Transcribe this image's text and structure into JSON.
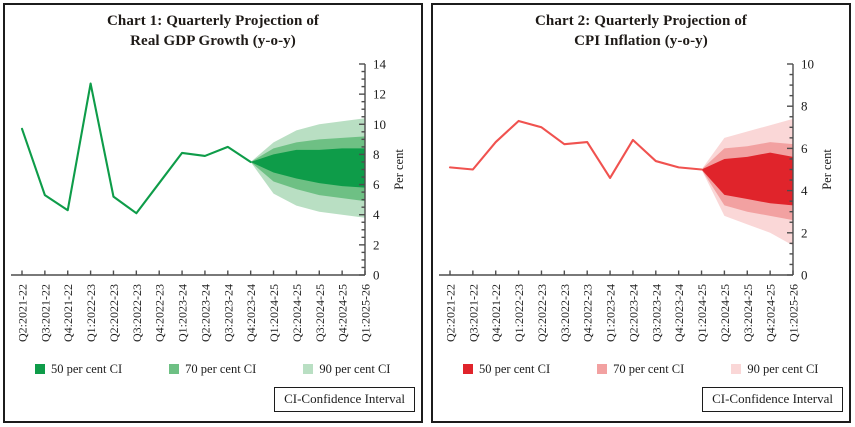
{
  "chart_data": [
    {
      "id": "gdp",
      "type": "line+fan",
      "title_line1": "Chart 1: Quarterly Projection of",
      "title_line2": "Real GDP Growth (y-o-y)",
      "ylabel": "Per cent",
      "ylim": [
        0,
        14
      ],
      "ytick_step": 2,
      "ytick_labels": [
        "0",
        "2",
        "4",
        "6",
        "8",
        "10",
        "12",
        "14"
      ],
      "grid": false,
      "legend_position": "bottom",
      "categories": [
        "Q2:2021-22",
        "Q3:2021-22",
        "Q4:2021-22",
        "Q1:2022-23",
        "Q2:2022-23",
        "Q3:2022-23",
        "Q4:2022-23",
        "Q1:2023-24",
        "Q2:2023-24",
        "Q3:2023-24",
        "Q4:2023-24",
        "Q1:2024-25",
        "Q2:2024-25",
        "Q3:2024-25",
        "Q4:2024-25",
        "Q1:2025-26"
      ],
      "line": {
        "name": "Real GDP growth (actual path)",
        "color": "#0e9c49",
        "values": [
          9.7,
          5.3,
          4.3,
          12.7,
          5.2,
          4.1,
          6.1,
          8.1,
          7.9,
          8.5,
          7.5
        ]
      },
      "fan_start_index": 10,
      "bands": [
        {
          "name": "90 per cent CI",
          "color": "#b9dfc3",
          "upper": [
            7.5,
            8.8,
            9.6,
            10.0,
            10.2,
            10.4
          ],
          "lower": [
            7.5,
            5.4,
            4.6,
            4.2,
            4.0,
            3.8
          ]
        },
        {
          "name": "70 per cent CI",
          "color": "#6ec084",
          "upper": [
            7.5,
            8.4,
            8.8,
            9.0,
            9.1,
            9.2
          ],
          "lower": [
            7.5,
            6.2,
            5.7,
            5.3,
            5.1,
            4.9
          ]
        },
        {
          "name": "50 per cent CI",
          "color": "#0e9c49",
          "upper": [
            7.5,
            8.0,
            8.3,
            8.3,
            8.4,
            8.4
          ],
          "lower": [
            7.5,
            6.8,
            6.4,
            6.1,
            5.9,
            5.8
          ]
        }
      ],
      "legend": [
        {
          "label": "50 per cent CI",
          "color": "#0e9c49"
        },
        {
          "label": "70 per cent CI",
          "color": "#6ec084"
        },
        {
          "label": "90 per cent CI",
          "color": "#b9dfc3"
        }
      ],
      "note_box": "CI-Confidence Interval"
    },
    {
      "id": "cpi",
      "type": "line+fan",
      "title_line1": "Chart 2: Quarterly Projection of",
      "title_line2": "CPI Inflation (y-o-y)",
      "ylabel": "Per cent",
      "ylim": [
        0,
        10
      ],
      "ytick_step": 2,
      "ytick_labels": [
        "0",
        "2",
        "4",
        "6",
        "8",
        "10"
      ],
      "grid": false,
      "legend_position": "bottom",
      "categories": [
        "Q2:2021-22",
        "Q3:2021-22",
        "Q4:2021-22",
        "Q1:2022-23",
        "Q2:2022-23",
        "Q3:2022-23",
        "Q4:2022-23",
        "Q1:2023-24",
        "Q2:2023-24",
        "Q3:2023-24",
        "Q4:2023-24",
        "Q1:2024-25",
        "Q2:2024-25",
        "Q3:2024-25",
        "Q4:2024-25",
        "Q1:2025-26"
      ],
      "line": {
        "name": "CPI inflation (actual path)",
        "color": "#f0524f",
        "values": [
          5.1,
          5.0,
          6.3,
          7.3,
          7.0,
          6.2,
          6.3,
          4.6,
          6.4,
          5.4,
          5.1,
          5.0
        ]
      },
      "fan_start_index": 11,
      "bands": [
        {
          "name": "90 per cent CI",
          "color": "#fad7d7",
          "upper": [
            5.0,
            6.5,
            6.8,
            7.1,
            7.4
          ],
          "lower": [
            5.0,
            2.8,
            2.4,
            2.0,
            1.4
          ]
        },
        {
          "name": "70 per cent CI",
          "color": "#f2a1a1",
          "upper": [
            5.0,
            6.0,
            6.1,
            6.3,
            6.2
          ],
          "lower": [
            5.0,
            3.3,
            3.0,
            2.8,
            2.6
          ]
        },
        {
          "name": "50 per cent CI",
          "color": "#e0242b",
          "upper": [
            5.0,
            5.5,
            5.6,
            5.8,
            5.6
          ],
          "lower": [
            5.0,
            3.8,
            3.6,
            3.4,
            3.3
          ]
        }
      ],
      "legend": [
        {
          "label": "50 per cent CI",
          "color": "#e0242b"
        },
        {
          "label": "70 per cent CI",
          "color": "#f2a1a1"
        },
        {
          "label": "90 per cent CI",
          "color": "#fad7d7"
        }
      ],
      "note_box": "CI-Confidence Interval"
    }
  ]
}
